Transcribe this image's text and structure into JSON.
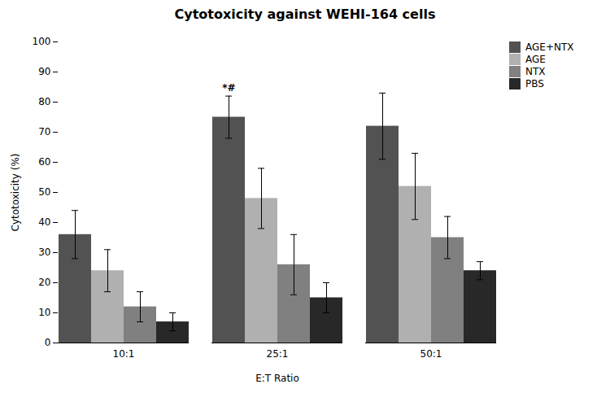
{
  "chart_data": {
    "type": "bar",
    "title": "Cytotoxicity against WEHI-164 cells",
    "xlabel": "E:T Ratio",
    "ylabel": "Cytotoxicity (%)",
    "categories": [
      "10:1",
      "25:1",
      "50:1"
    ],
    "series": [
      {
        "name": "AGE+NTX",
        "color": "#525252",
        "values": [
          36,
          75,
          72
        ],
        "errors": [
          8,
          7,
          11
        ]
      },
      {
        "name": "AGE",
        "color": "#b0b0b0",
        "values": [
          24,
          48,
          52
        ],
        "errors": [
          7,
          10,
          11
        ]
      },
      {
        "name": "NTX",
        "color": "#808080",
        "values": [
          12,
          26,
          35
        ],
        "errors": [
          5,
          10,
          7
        ]
      },
      {
        "name": "PBS",
        "color": "#282828",
        "values": [
          7,
          15,
          24
        ],
        "errors": [
          3,
          5,
          3
        ]
      }
    ],
    "annotations": [
      {
        "text": "*#",
        "category": "25:1",
        "series": "AGE+NTX"
      }
    ],
    "ylim": [
      0,
      100
    ],
    "yticks": [
      0,
      10,
      20,
      30,
      40,
      50,
      60,
      70,
      80,
      90,
      100
    ],
    "grid": false,
    "legend": "right"
  }
}
